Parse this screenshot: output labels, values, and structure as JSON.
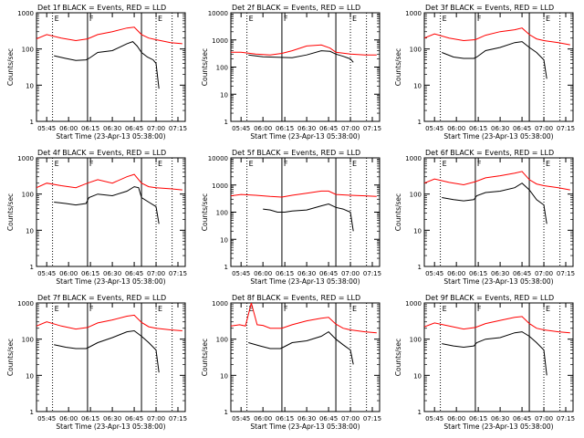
{
  "figure": {
    "ylabel": "Counts/sec",
    "xlabel": "Start Time (23-Apr-13 05:38:00)",
    "x_tick_labels": [
      "05:45",
      "06:00",
      "06:15",
      "06:30",
      "06:45",
      "07:00",
      "07:15"
    ],
    "y_tick_labels": [
      "1",
      "10",
      "100",
      "1000"
    ],
    "marker_labels": [
      "E",
      "F",
      "E"
    ],
    "colors": {
      "events": "#000000",
      "lld": "#ff0000",
      "markers_solid": "#000000",
      "markers_dotted": "#000000"
    }
  },
  "chart_data": [
    {
      "type": "line",
      "title": "Det 1f BLACK = Events, RED = LLD",
      "ylim": [
        1,
        1000
      ],
      "y_scale": "log",
      "xlim": [
        "05:38",
        "07:20"
      ],
      "markers": {
        "dotted": [
          "05:49",
          "07:00",
          "07:11"
        ],
        "solid": [
          "06:13",
          "06:50"
        ]
      },
      "series": [
        {
          "name": "Events",
          "color": "#000000",
          "x": [
            "05:50",
            "05:58",
            "06:05",
            "06:12",
            "06:14",
            "06:20",
            "06:30",
            "06:40",
            "06:44",
            "06:47",
            "06:50",
            "06:54",
            "06:58",
            "07:00",
            "07:02"
          ],
          "values": [
            65,
            55,
            48,
            50,
            55,
            80,
            90,
            140,
            160,
            120,
            80,
            60,
            50,
            40,
            8
          ]
        },
        {
          "name": "LLD",
          "color": "#ff0000",
          "x": [
            "05:38",
            "05:45",
            "05:55",
            "06:05",
            "06:13",
            "06:20",
            "06:30",
            "06:40",
            "06:45",
            "06:50",
            "06:55",
            "07:00",
            "07:10",
            "07:18"
          ],
          "values": [
            190,
            250,
            200,
            170,
            190,
            250,
            300,
            380,
            400,
            250,
            200,
            180,
            150,
            140
          ]
        }
      ]
    },
    {
      "type": "line",
      "title": "Det 2f BLACK = Events, RED = LLD",
      "ylim": [
        1,
        10000
      ],
      "y_scale": "log",
      "xlim": [
        "05:38",
        "07:20"
      ],
      "markers": {
        "dotted": [
          "05:49",
          "07:00",
          "07:11"
        ],
        "solid": [
          "06:13",
          "06:50"
        ]
      },
      "series": [
        {
          "name": "Events",
          "color": "#000000",
          "x": [
            "05:50",
            "06:00",
            "06:10",
            "06:20",
            "06:30",
            "06:40",
            "06:46",
            "06:50",
            "06:55",
            "07:00",
            "07:02"
          ],
          "values": [
            280,
            240,
            230,
            220,
            280,
            400,
            380,
            300,
            250,
            200,
            150
          ]
        },
        {
          "name": "LLD",
          "color": "#ff0000",
          "x": [
            "05:38",
            "05:45",
            "05:55",
            "06:05",
            "06:13",
            "06:20",
            "06:30",
            "06:40",
            "06:46",
            "06:50",
            "07:00",
            "07:10",
            "07:18"
          ],
          "values": [
            350,
            350,
            300,
            280,
            320,
            400,
            600,
            650,
            500,
            350,
            300,
            280,
            280
          ]
        }
      ]
    },
    {
      "type": "line",
      "title": "Det 3f BLACK = Events, RED = LLD",
      "ylim": [
        1,
        1000
      ],
      "y_scale": "log",
      "xlim": [
        "05:38",
        "07:20"
      ],
      "markers": {
        "dotted": [
          "05:49",
          "07:00",
          "07:11"
        ],
        "solid": [
          "06:13",
          "06:50"
        ]
      },
      "series": [
        {
          "name": "Events",
          "color": "#000000",
          "x": [
            "05:50",
            "05:58",
            "06:05",
            "06:12",
            "06:14",
            "06:20",
            "06:30",
            "06:40",
            "06:45",
            "06:50",
            "06:55",
            "07:00",
            "07:02"
          ],
          "values": [
            80,
            60,
            55,
            55,
            60,
            90,
            110,
            150,
            160,
            110,
            80,
            50,
            15
          ]
        },
        {
          "name": "LLD",
          "color": "#ff0000",
          "x": [
            "05:38",
            "05:45",
            "05:55",
            "06:05",
            "06:13",
            "06:20",
            "06:30",
            "06:40",
            "06:45",
            "06:50",
            "06:55",
            "07:00",
            "07:10",
            "07:18"
          ],
          "values": [
            200,
            260,
            200,
            170,
            180,
            240,
            300,
            340,
            380,
            250,
            190,
            170,
            150,
            130
          ]
        }
      ]
    },
    {
      "type": "line",
      "title": "Det 4f BLACK = Events, RED = LLD",
      "ylim": [
        1,
        1000
      ],
      "y_scale": "log",
      "xlim": [
        "05:38",
        "07:20"
      ],
      "markers": {
        "dotted": [
          "05:49",
          "07:00",
          "07:11"
        ],
        "solid": [
          "06:13",
          "06:50"
        ]
      },
      "series": [
        {
          "name": "Events",
          "color": "#000000",
          "x": [
            "05:50",
            "05:58",
            "06:05",
            "06:12",
            "06:14",
            "06:20",
            "06:30",
            "06:40",
            "06:45",
            "06:48",
            "06:50",
            "06:55",
            "07:00",
            "07:02"
          ],
          "values": [
            60,
            55,
            50,
            55,
            80,
            100,
            90,
            120,
            160,
            150,
            80,
            60,
            45,
            15
          ]
        },
        {
          "name": "LLD",
          "color": "#ff0000",
          "x": [
            "05:38",
            "05:45",
            "05:55",
            "06:05",
            "06:13",
            "06:20",
            "06:30",
            "06:40",
            "06:45",
            "06:50",
            "06:55",
            "07:00",
            "07:10",
            "07:18"
          ],
          "values": [
            150,
            200,
            170,
            150,
            200,
            250,
            200,
            300,
            350,
            200,
            160,
            150,
            140,
            130
          ]
        }
      ]
    },
    {
      "type": "line",
      "title": "Det 5f BLACK = Events, RED = LLD",
      "ylim": [
        1,
        10000
      ],
      "y_scale": "log",
      "xlim": [
        "05:38",
        "07:20"
      ],
      "markers": {
        "dotted": [
          "05:49",
          "07:00",
          "07:11"
        ],
        "solid": [
          "06:13",
          "06:50"
        ]
      },
      "series": [
        {
          "name": "Events",
          "color": "#000000",
          "x": [
            "06:00",
            "06:05",
            "06:10",
            "06:15",
            "06:20",
            "06:30",
            "06:40",
            "06:45",
            "06:50",
            "06:55",
            "07:00",
            "07:02"
          ],
          "values": [
            130,
            120,
            100,
            100,
            110,
            120,
            170,
            200,
            150,
            130,
            100,
            20
          ]
        },
        {
          "name": "LLD",
          "color": "#ff0000",
          "x": [
            "05:38",
            "05:45",
            "05:55",
            "06:05",
            "06:13",
            "06:20",
            "06:30",
            "06:40",
            "06:45",
            "06:50",
            "07:00",
            "07:10",
            "07:18"
          ],
          "values": [
            400,
            450,
            420,
            380,
            360,
            420,
            500,
            600,
            600,
            450,
            420,
            400,
            380
          ]
        }
      ]
    },
    {
      "type": "line",
      "title": "Det 6f BLACK = Events, RED = LLD",
      "ylim": [
        1,
        1000
      ],
      "y_scale": "log",
      "xlim": [
        "05:38",
        "07:20"
      ],
      "markers": {
        "dotted": [
          "05:49",
          "07:00",
          "07:11"
        ],
        "solid": [
          "06:13",
          "06:50"
        ]
      },
      "series": [
        {
          "name": "Events",
          "color": "#000000",
          "x": [
            "05:50",
            "05:58",
            "06:05",
            "06:12",
            "06:14",
            "06:20",
            "06:30",
            "06:40",
            "06:45",
            "06:50",
            "06:55",
            "07:00",
            "07:02"
          ],
          "values": [
            80,
            70,
            65,
            70,
            90,
            110,
            120,
            150,
            200,
            130,
            70,
            50,
            15
          ]
        },
        {
          "name": "LLD",
          "color": "#ff0000",
          "x": [
            "05:38",
            "05:45",
            "05:55",
            "06:05",
            "06:13",
            "06:20",
            "06:30",
            "06:40",
            "06:45",
            "06:50",
            "06:55",
            "07:00",
            "07:10",
            "07:18"
          ],
          "values": [
            200,
            260,
            210,
            180,
            220,
            280,
            320,
            380,
            420,
            250,
            190,
            170,
            150,
            130
          ]
        }
      ]
    },
    {
      "type": "line",
      "title": "Det 7f BLACK = Events, RED = LLD",
      "ylim": [
        1,
        1000
      ],
      "y_scale": "log",
      "xlim": [
        "05:38",
        "07:20"
      ],
      "markers": {
        "dotted": [
          "05:49",
          "07:00",
          "07:11"
        ],
        "solid": [
          "06:13",
          "06:50"
        ]
      },
      "series": [
        {
          "name": "Events",
          "color": "#000000",
          "x": [
            "05:50",
            "05:58",
            "06:05",
            "06:12",
            "06:14",
            "06:20",
            "06:30",
            "06:40",
            "06:45",
            "06:50",
            "06:55",
            "07:00",
            "07:02"
          ],
          "values": [
            70,
            60,
            55,
            55,
            60,
            80,
            110,
            160,
            170,
            120,
            80,
            50,
            12
          ]
        },
        {
          "name": "LLD",
          "color": "#ff0000",
          "x": [
            "05:38",
            "05:45",
            "05:55",
            "06:05",
            "06:13",
            "06:20",
            "06:30",
            "06:40",
            "06:45",
            "06:50",
            "06:55",
            "07:00",
            "07:10",
            "07:18"
          ],
          "values": [
            230,
            300,
            230,
            190,
            210,
            280,
            340,
            430,
            460,
            290,
            220,
            200,
            180,
            170
          ]
        }
      ]
    },
    {
      "type": "line",
      "title": "Det 8f BLACK = Events, RED = LLD",
      "ylim": [
        1,
        1000
      ],
      "y_scale": "log",
      "xlim": [
        "05:38",
        "07:20"
      ],
      "markers": {
        "dotted": [
          "05:49",
          "07:00",
          "07:11"
        ],
        "solid": [
          "06:13",
          "06:50"
        ]
      },
      "series": [
        {
          "name": "Events",
          "color": "#000000",
          "x": [
            "05:50",
            "05:58",
            "06:05",
            "06:12",
            "06:14",
            "06:20",
            "06:30",
            "06:40",
            "06:45",
            "06:50",
            "06:55",
            "07:00",
            "07:02"
          ],
          "values": [
            80,
            65,
            55,
            55,
            60,
            80,
            90,
            120,
            160,
            100,
            70,
            50,
            20
          ]
        },
        {
          "name": "LLD",
          "color": "#ff0000",
          "x": [
            "05:38",
            "05:44",
            "05:48",
            "05:52",
            "05:56",
            "06:00",
            "06:05",
            "06:13",
            "06:20",
            "06:30",
            "06:40",
            "06:45",
            "06:50",
            "06:55",
            "07:00",
            "07:10",
            "07:18"
          ],
          "values": [
            230,
            250,
            230,
            1000,
            250,
            240,
            200,
            200,
            250,
            320,
            380,
            400,
            260,
            200,
            180,
            160,
            150
          ]
        }
      ]
    },
    {
      "type": "line",
      "title": "Det 9f BLACK = Events, RED = LLD",
      "ylim": [
        1,
        1000
      ],
      "y_scale": "log",
      "xlim": [
        "05:38",
        "07:20"
      ],
      "markers": {
        "dotted": [
          "05:49",
          "07:00",
          "07:11"
        ],
        "solid": [
          "06:13",
          "06:50"
        ]
      },
      "series": [
        {
          "name": "Events",
          "color": "#000000",
          "x": [
            "05:50",
            "05:58",
            "06:05",
            "06:12",
            "06:14",
            "06:20",
            "06:30",
            "06:40",
            "06:45",
            "06:50",
            "06:55",
            "07:00",
            "07:02"
          ],
          "values": [
            75,
            65,
            60,
            65,
            80,
            100,
            110,
            150,
            160,
            120,
            80,
            50,
            10
          ]
        },
        {
          "name": "LLD",
          "color": "#ff0000",
          "x": [
            "05:38",
            "05:45",
            "05:55",
            "06:05",
            "06:13",
            "06:20",
            "06:30",
            "06:40",
            "06:45",
            "06:50",
            "06:55",
            "07:00",
            "07:10",
            "07:18"
          ],
          "values": [
            220,
            280,
            230,
            190,
            210,
            270,
            330,
            400,
            420,
            270,
            200,
            180,
            160,
            150
          ]
        }
      ]
    }
  ]
}
